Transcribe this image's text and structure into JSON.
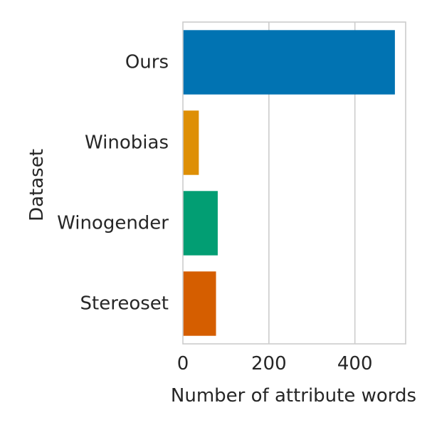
{
  "chart_data": {
    "type": "bar",
    "orientation": "horizontal",
    "categories": [
      "Ours",
      "Winobias",
      "Winogender",
      "Stereoset"
    ],
    "values": [
      493,
      37,
      81,
      77
    ],
    "colors": [
      "#0173b2",
      "#de8f05",
      "#029e73",
      "#d55e00"
    ],
    "xlabel": "Number of attribute words",
    "ylabel": "Dataset",
    "xlim": [
      0,
      518
    ],
    "xticks": [
      0,
      200,
      400
    ],
    "grid": true
  }
}
